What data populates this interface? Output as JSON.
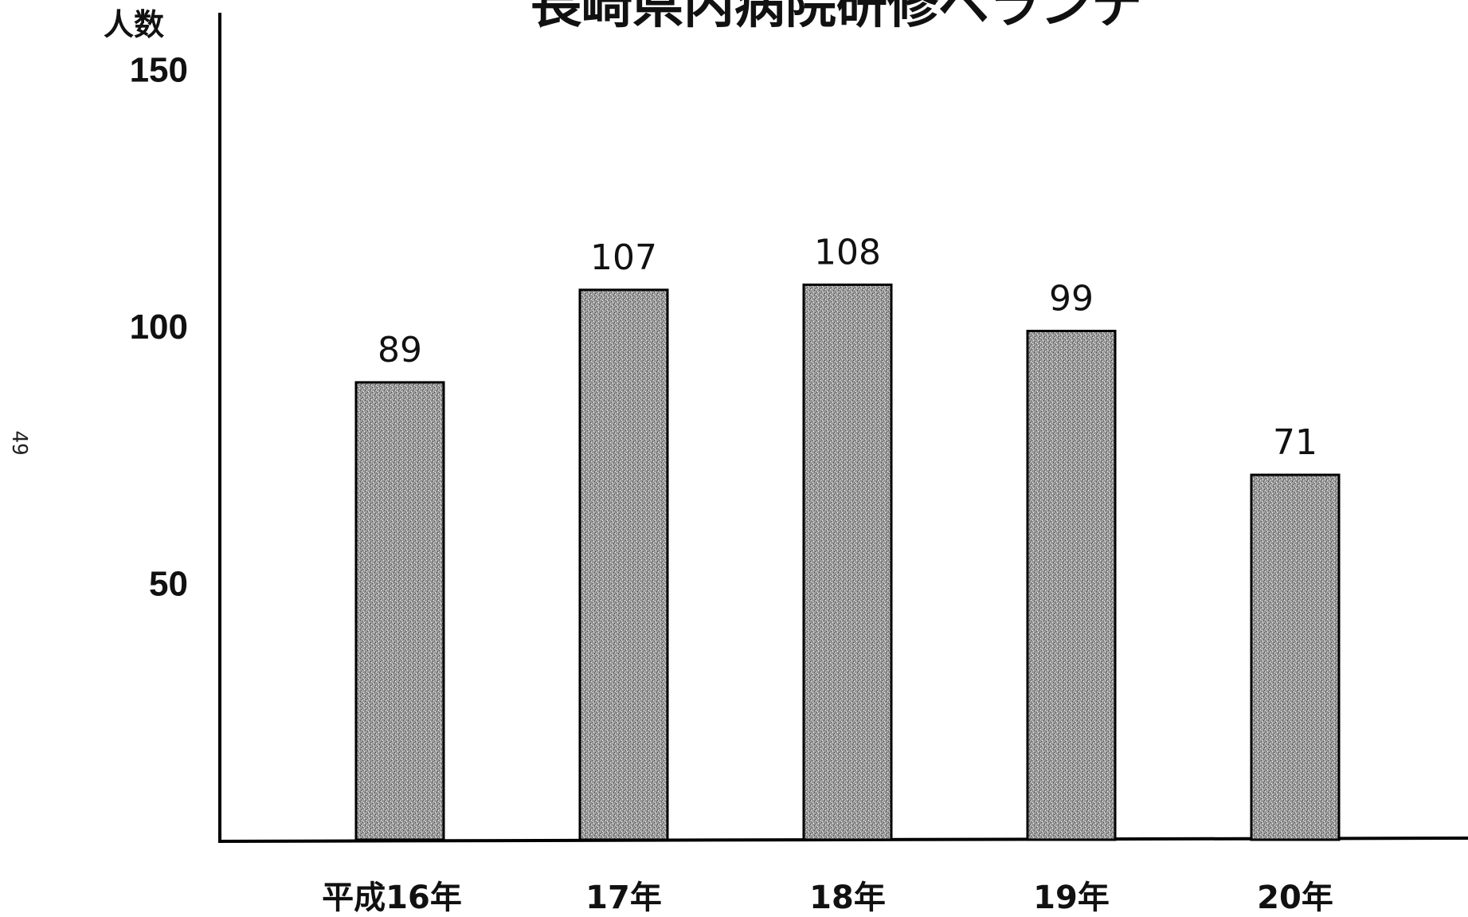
{
  "chart_data": {
    "type": "bar",
    "title": "長崎県内病院研修ペランテ",
    "ylabel": "人数",
    "xlabel": "",
    "categories": [
      "平成16年",
      "17年",
      "18年",
      "19年",
      "20年"
    ],
    "values": [
      89,
      107,
      108,
      99,
      71
    ],
    "ylim": [
      0,
      150
    ],
    "yticks": [
      50,
      100,
      150
    ],
    "grid": false,
    "legend": null,
    "bar_fill": "#8a8a8a",
    "bar_stroke": "#000000"
  },
  "page_number": "49"
}
